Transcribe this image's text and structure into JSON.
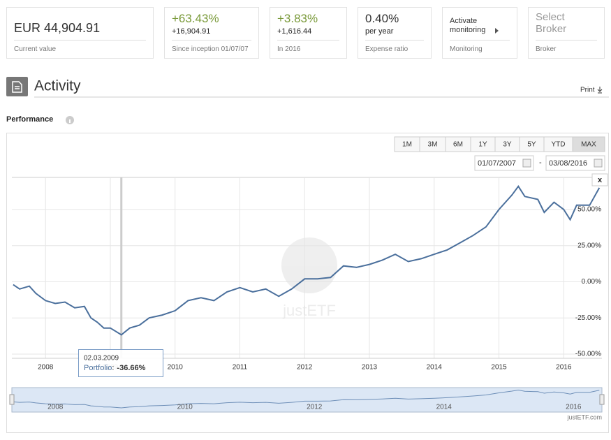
{
  "cards": [
    {
      "value": "EUR 44,904.91",
      "label": "Current value"
    },
    {
      "value": "+63.43%",
      "sub": "+16,904.91",
      "label": "Since inception 01/07/07"
    },
    {
      "value": "+3.83%",
      "sub": "+1,616.44",
      "label": "In 2016"
    },
    {
      "value": "0.40%",
      "sub": "per year",
      "label": "Expense ratio"
    },
    {
      "value": "Activate monitoring",
      "label": "Monitoring"
    },
    {
      "value": "Select Broker",
      "label": "Broker"
    }
  ],
  "section": {
    "title": "Activity",
    "print": "Print"
  },
  "performance": {
    "title": "Performance",
    "ranges": [
      "1M",
      "3M",
      "6M",
      "1Y",
      "3Y",
      "5Y",
      "YTD",
      "MAX"
    ],
    "date_from": "01/07/2007",
    "separator": "-",
    "date_to": "03/08/2016",
    "close": "x",
    "tooltip": {
      "date": "02.03.2009",
      "separator": ":",
      "value": "-36.66%"
    },
    "watermark": "justETF",
    "credit": "justETF.com"
  },
  "chart_data": {
    "type": "line",
    "x": [
      2007.5,
      2007.6,
      2007.75,
      2007.85,
      2008.0,
      2008.15,
      2008.3,
      2008.45,
      2008.6,
      2008.7,
      2008.8,
      2008.9,
      2009.0,
      2009.17,
      2009.3,
      2009.45,
      2009.6,
      2009.8,
      2010.0,
      2010.2,
      2010.4,
      2010.6,
      2010.8,
      2011.0,
      2011.2,
      2011.4,
      2011.6,
      2011.8,
      2012.0,
      2012.2,
      2012.4,
      2012.6,
      2012.8,
      2013.0,
      2013.2,
      2013.4,
      2013.6,
      2013.8,
      2014.0,
      2014.2,
      2014.4,
      2014.6,
      2014.8,
      2015.0,
      2015.2,
      2015.3,
      2015.4,
      2015.6,
      2015.7,
      2015.85,
      2016.0,
      2016.1,
      2016.2,
      2016.4,
      2016.55
    ],
    "series": [
      {
        "name": "Portfolio",
        "color": "#4a6f9c",
        "values": [
          -2,
          -5,
          -3,
          -8,
          -13,
          -15,
          -14,
          -18,
          -17,
          -25,
          -28,
          -32,
          -32,
          -36.66,
          -32,
          -30,
          -25,
          -23,
          -20,
          -13,
          -11,
          -13,
          -7,
          -4,
          -7,
          -5,
          -10,
          -5,
          2,
          2,
          3,
          11,
          10,
          12,
          15,
          19,
          14,
          16,
          19,
          22,
          27,
          32,
          38,
          50,
          60,
          66,
          59,
          57,
          48,
          55,
          50,
          43,
          53,
          53,
          65
        ]
      }
    ],
    "xlim": [
      2007.48,
      2016.59
    ],
    "ylim": [
      -52.9,
      72.2
    ],
    "xticks": [
      2008,
      2009,
      2010,
      2011,
      2012,
      2013,
      2014,
      2015,
      2016
    ],
    "yticks": [
      {
        "value": -50,
        "label": "-50.00%"
      },
      {
        "value": -25,
        "label": "-25.00%"
      },
      {
        "value": 0,
        "label": "0.00%"
      },
      {
        "value": 25,
        "label": "25.00%"
      },
      {
        "value": 50,
        "label": "50.00%"
      }
    ],
    "grid": true
  }
}
